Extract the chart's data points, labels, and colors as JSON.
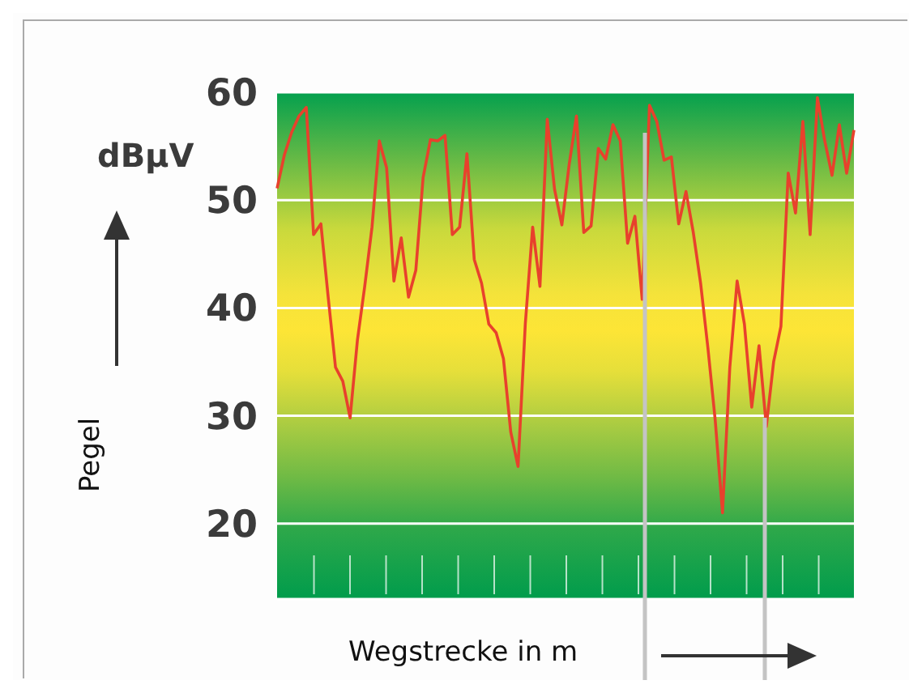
{
  "chart_data": {
    "type": "line",
    "ylabel": "Pegel",
    "xlabel": "Wegstrecke in m",
    "annotations": [
      "dBµV"
    ],
    "categories": [
      null,
      null,
      null,
      null,
      null,
      null,
      null,
      null,
      null,
      null,
      null,
      null,
      null,
      null,
      null,
      null,
      null,
      null,
      null,
      null,
      null,
      null,
      null,
      null,
      null,
      null,
      null,
      null,
      null,
      null,
      null,
      null,
      null,
      null,
      null,
      null,
      null,
      null,
      null,
      null,
      null,
      null,
      null,
      null,
      null,
      null,
      null,
      null,
      null,
      null,
      null,
      null,
      null,
      null,
      null,
      null,
      null,
      null,
      null,
      null,
      null,
      null,
      null,
      null,
      null,
      null,
      null,
      null,
      null,
      null,
      null,
      null,
      null,
      null,
      null,
      null,
      null,
      null,
      null,
      null
    ],
    "series": [
      {
        "color": "#e8412c",
        "values": [
          51.1,
          54.2,
          56.3,
          57.8,
          58.6,
          46.8,
          47.8,
          41.0,
          34.5,
          33.2,
          29.8,
          37.0,
          42.0,
          47.5,
          55.5,
          53.0,
          42.5,
          46.5,
          41.0,
          43.5,
          52.1,
          55.6,
          55.5,
          56.0,
          46.8,
          47.5,
          54.3,
          44.5,
          42.3,
          38.5,
          37.7,
          35.3,
          28.5,
          25.3,
          38.6,
          47.5,
          42.0,
          57.5,
          51.0,
          47.7,
          53.3,
          57.8,
          47.0,
          47.6,
          54.8,
          53.8,
          57.0,
          55.5,
          46.0,
          48.5,
          40.8,
          58.8,
          57.3,
          53.7,
          54.0,
          47.8,
          50.8,
          47.0,
          42.3,
          36.3,
          29.6,
          21.0,
          34.5,
          42.5,
          38.5,
          30.8,
          36.5,
          29.0,
          35.0,
          38.3,
          52.5,
          48.8,
          57.3,
          46.8,
          59.5,
          55.5,
          52.3,
          57.0,
          52.5,
          56.5
        ]
      }
    ],
    "ylim": [
      13,
      60
    ],
    "yticks": [
      20,
      30,
      40,
      50,
      60
    ],
    "grid": "y",
    "tick_labels": "y",
    "marker": "none",
    "line_style": "solid"
  }
}
